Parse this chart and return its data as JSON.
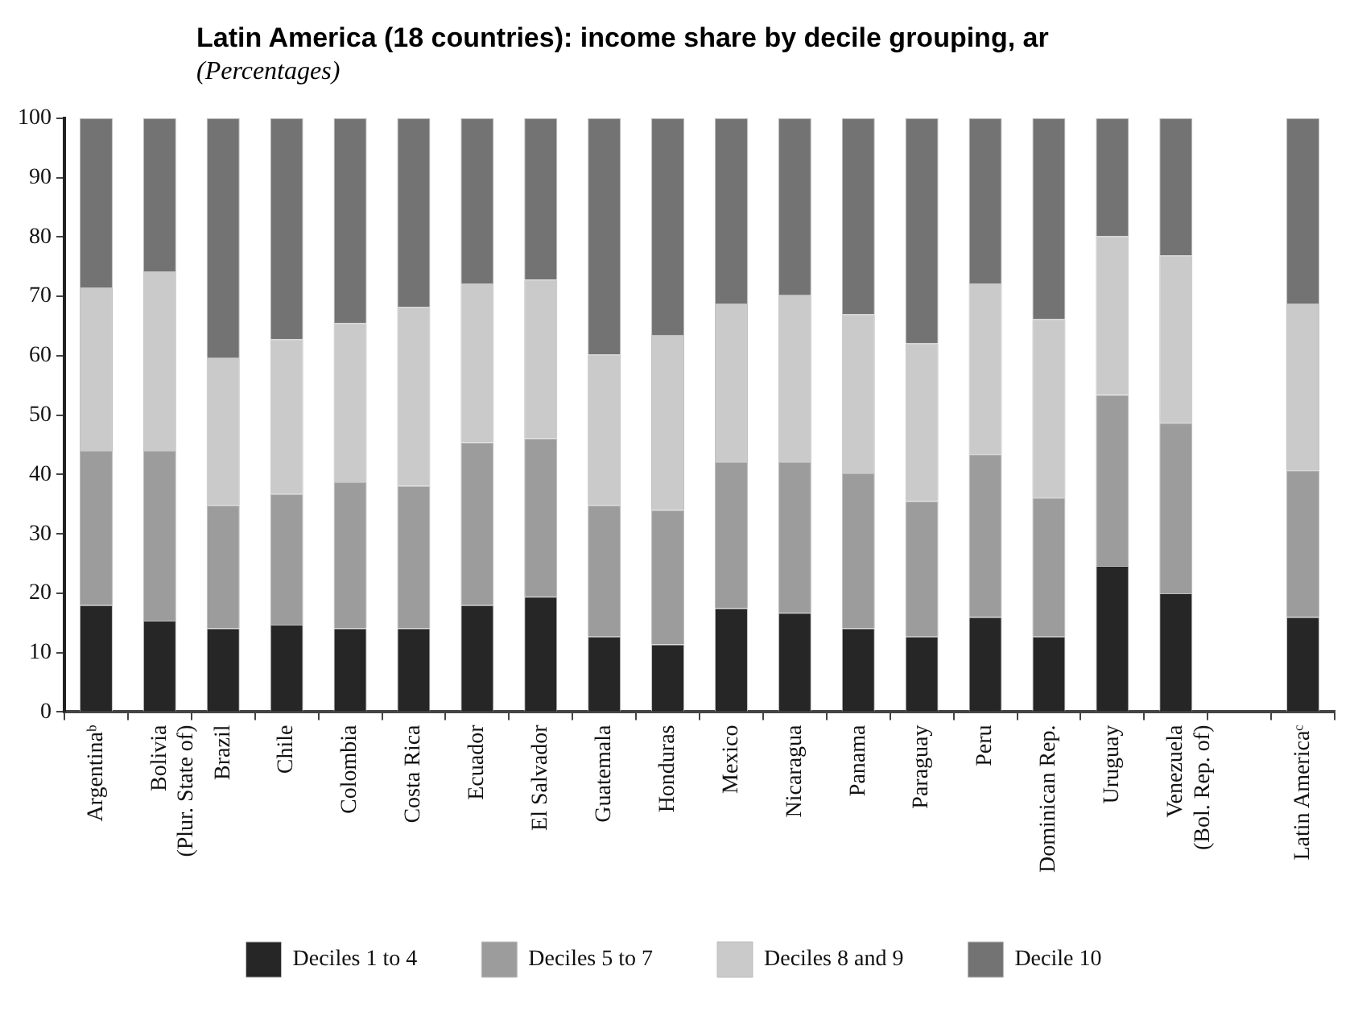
{
  "chart_data": {
    "type": "bar",
    "stacked": true,
    "title": "Latin America (18 countries): income share by decile grouping, ar",
    "subtitle": "(Percentages)",
    "categories": [
      "Argentinaᵇ",
      "Bolivia\n(Plur. State of)",
      "Brazil",
      "Chile",
      "Colombia",
      "Costa Rica",
      "Ecuador",
      "El Salvador",
      "Guatemala",
      "Honduras",
      "Mexico",
      "Nicaragua",
      "Panama",
      "Paraguay",
      "Peru",
      "Dominican Rep.",
      "Uruguay",
      "Venezuela\n(Bol. Rep. of)",
      null,
      "Latin Americaᶜ"
    ],
    "series": [
      {
        "name": "Deciles 1 to 4",
        "color": "#262626",
        "values": [
          18.0,
          15.4,
          14.1,
          14.7,
          14.1,
          14.1,
          18.0,
          19.4,
          12.7,
          11.4,
          17.5,
          16.7,
          14.1,
          12.7,
          16.0,
          12.7,
          24.6,
          20.0,
          null,
          16.0
        ]
      },
      {
        "name": "Deciles 5 to 7",
        "color": "#9c9c9c",
        "values": [
          26.0,
          28.6,
          20.7,
          22.0,
          24.6,
          24.0,
          27.4,
          26.7,
          22.1,
          22.6,
          24.6,
          25.4,
          26.1,
          22.8,
          27.4,
          23.4,
          28.8,
          28.7,
          null,
          24.7
        ]
      },
      {
        "name": "Deciles 8 and 9",
        "color": "#cacaca",
        "values": [
          27.5,
          30.2,
          24.8,
          26.1,
          26.8,
          30.1,
          26.8,
          26.7,
          25.4,
          29.5,
          26.7,
          28.1,
          26.8,
          26.6,
          28.8,
          30.1,
          26.7,
          28.2,
          null,
          28.1
        ]
      },
      {
        "name": "Decile 10",
        "color": "#737373",
        "values": [
          28.5,
          25.8,
          40.4,
          37.2,
          34.5,
          31.8,
          27.8,
          27.2,
          39.8,
          36.5,
          31.2,
          29.8,
          33.0,
          37.9,
          27.8,
          33.8,
          19.9,
          23.1,
          null,
          31.2
        ]
      }
    ],
    "ylim": [
      0,
      100
    ],
    "yticks": [
      0,
      10,
      20,
      30,
      40,
      50,
      60,
      70,
      80,
      90,
      100
    ],
    "grid": false,
    "legend": "bottom"
  }
}
